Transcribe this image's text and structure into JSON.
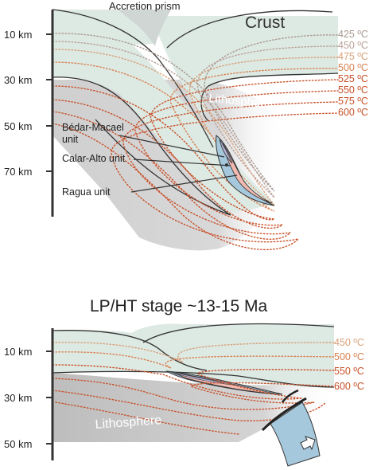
{
  "panel_top": {
    "title": "",
    "accretion_label": "Accretion prism",
    "crust_label": "Crust",
    "lithosphere_label": "Lithosphere",
    "depth_ticks": [
      "10 km",
      "30 km",
      "50 km",
      "70 km"
    ],
    "isotherms": [
      {
        "label": "425 ºC",
        "color": "#a89890"
      },
      {
        "label": "450 ºC",
        "color": "#b8a098"
      },
      {
        "label": "475 ºC",
        "color": "#d8a078"
      },
      {
        "label": "500 ºC",
        "color": "#d88050"
      },
      {
        "label": "525 ºC",
        "color": "#c85028"
      },
      {
        "label": "550 ºC",
        "color": "#c85028"
      },
      {
        "label": "575 ºC",
        "color": "#c85028"
      },
      {
        "label": "600 ºC",
        "color": "#c85028"
      }
    ],
    "units": [
      {
        "line1": "Bédar-Macael",
        "line2": "unit"
      },
      {
        "line1": "Calar-Alto unit",
        "line2": ""
      },
      {
        "line1": "Ragua unit",
        "line2": ""
      }
    ]
  },
  "panel_bottom": {
    "title": "LP/HT stage ~13-15 Ma",
    "lithosphere_label": "Lithosphere",
    "depth_ticks": [
      "10 km",
      "30 km",
      "50 km"
    ],
    "isotherms": [
      {
        "label": "450 ºC",
        "color": "#d8a078"
      },
      {
        "label": "500 ºC",
        "color": "#d88050"
      },
      {
        "label": "550 ºC",
        "color": "#c85028"
      },
      {
        "label": "600 ºC",
        "color": "#c85028"
      }
    ]
  },
  "colors": {
    "crust": "#dde9e3",
    "lithosphere": "#c7c7c7",
    "slab_blue": "#a6c8dc",
    "pink": "#f2b9b0",
    "lilac": "#b8b2d8",
    "axis": "#333333"
  }
}
